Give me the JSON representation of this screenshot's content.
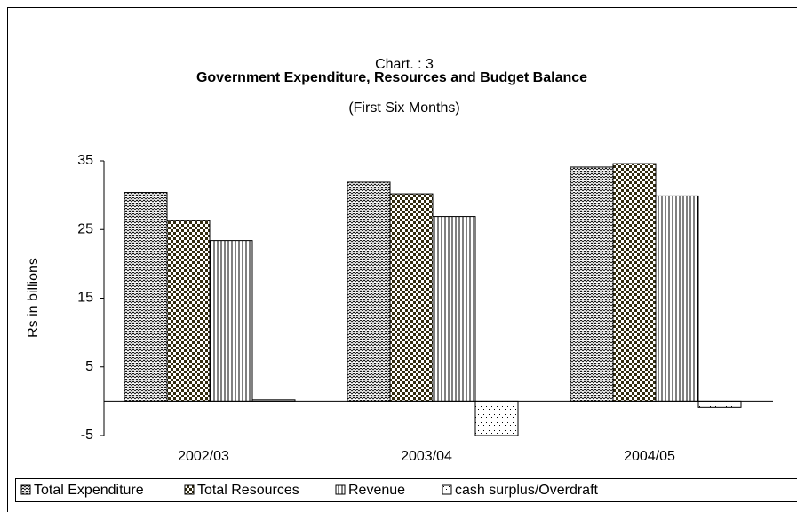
{
  "chart_data": {
    "type": "bar",
    "title": "Government Expenditure, Resources and Budget Balance",
    "label": "Chart. : 3",
    "subtitle": "(First Six Months)",
    "y_label": "Rs in billions",
    "categories": [
      "2002/03",
      "2003/04",
      "2004/05"
    ],
    "series": [
      {
        "name": "Total Expenditure",
        "color": "#000000",
        "pattern": "zigzag",
        "values": [
          30.4,
          31.9,
          34.1
        ]
      },
      {
        "name": "Total Resources",
        "color": "#000000",
        "pattern": "checker",
        "values": [
          26.3,
          30.2,
          34.6
        ]
      },
      {
        "name": "Revenue",
        "color": "#000000",
        "pattern": "vertical",
        "values": [
          23.4,
          26.9,
          29.9
        ]
      },
      {
        "name": "cash surplus/Overdraft",
        "color": "#000000",
        "pattern": "dots",
        "values": [
          0.2,
          -5.0,
          -0.9
        ]
      }
    ],
    "ylim": [
      -5,
      35
    ],
    "yticks": [
      35,
      25,
      15,
      5,
      -5
    ],
    "grid": false,
    "legend": "bottom"
  }
}
